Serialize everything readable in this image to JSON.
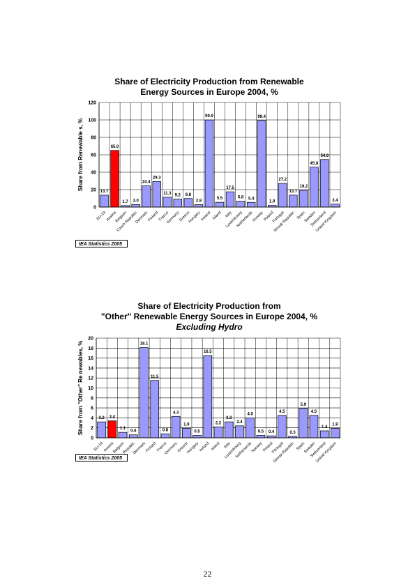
{
  "page_number": "22",
  "colors": {
    "bar": "#9999ff",
    "highlight": "#ff0000",
    "grid": "#808080"
  },
  "chart_data": [
    {
      "type": "bar",
      "title_line1": "Share of Electricity Production from Renewable",
      "title_line2": "Energy Sources in Europe 2004, %",
      "subtitle": "",
      "ylabel": "Share from Renewable s, %",
      "xlabel": "",
      "ylim": [
        0,
        120
      ],
      "yticks": [
        0,
        20,
        40,
        60,
        80,
        100,
        120
      ],
      "grid": true,
      "source": "IEA Statistics 2005",
      "categories": [
        "EU-19",
        "Austria",
        "Belgium",
        "Czech Republic",
        "Denmark",
        "Finland",
        "France",
        "Germany",
        "Greece",
        "Hungary",
        "Ireland",
        "Island",
        "Italy",
        "Luxembourg",
        "Netherlands",
        "Norway",
        "Poland",
        "Portugal",
        "Slovak Republic",
        "Spain",
        "Sweden",
        "Switzerland",
        "United Kingdom"
      ],
      "values": [
        13.7,
        65.0,
        1.7,
        3.0,
        24.4,
        29.3,
        11.3,
        9.2,
        9.8,
        2.8,
        99.9,
        5.5,
        17.5,
        6.8,
        5.4,
        99.4,
        1.9,
        27.2,
        13.7,
        19.2,
        45.8,
        54.6,
        3.4
      ],
      "labels": [
        "13.7",
        "65.0",
        "1.7",
        "3.0",
        "24.4",
        "29.3",
        "11.3",
        "9.2",
        "9.8",
        "2.8",
        "99.9",
        "5.5",
        "17.5",
        "6.8",
        "5.4",
        "99.4",
        "1.9",
        "27.2",
        "13.7",
        "19.2",
        "45.8",
        "54.6",
        "3.4"
      ],
      "highlight_index": 1
    },
    {
      "type": "bar",
      "title_line1": "Share of Electricity Production from",
      "title_line2": "\"Other\" Renewable Energy Sources in Europe 2004, %",
      "subtitle": "Excluding Hydro",
      "ylabel": "Share from \"Other\" Re newables, %",
      "xlabel": "",
      "ylim": [
        0,
        20
      ],
      "yticks": [
        0,
        2,
        4,
        6,
        8,
        10,
        12,
        14,
        16,
        18,
        20
      ],
      "grid": true,
      "source": "IEA Statistics 2005",
      "categories": [
        "EU-19",
        "Austria",
        "Belgium",
        "Czech Republic",
        "Denmark",
        "Finland",
        "France",
        "Germany",
        "Greece",
        "Hungary",
        "Ireland",
        "Island",
        "Italy",
        "Luxembourg",
        "Netherlands",
        "Norway",
        "Poland",
        "Portugal",
        "Slovak Republic",
        "Spain",
        "Sweden",
        "Switzerland",
        "United Kingdom"
      ],
      "values": [
        3.2,
        3.4,
        1.1,
        0.6,
        18.1,
        11.5,
        0.8,
        4.3,
        1.9,
        0.5,
        16.5,
        2.2,
        3.2,
        2.4,
        4.0,
        0.5,
        0.4,
        4.5,
        0.3,
        5.9,
        4.5,
        1.4,
        1.9
      ],
      "labels": [
        "3.2",
        "3.4",
        "1.1",
        "0.6",
        "18.1",
        "11.5",
        "0.8",
        "4.3",
        "1.9",
        "0.5",
        "16.5",
        "2.2",
        "3.2",
        "2.4",
        "4.0",
        "0.5",
        "0.4",
        "4.5",
        "0.3",
        "5.9",
        "4.5",
        "1.4",
        "1.9"
      ],
      "highlight_index": 1
    }
  ]
}
